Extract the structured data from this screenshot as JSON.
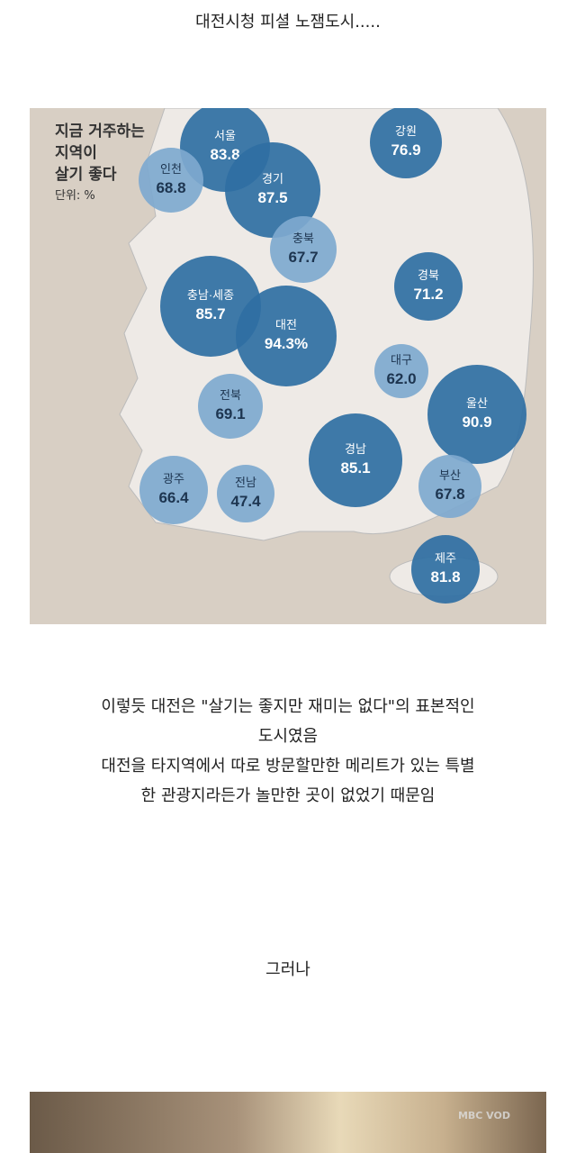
{
  "post": {
    "title": "대전시청 피셜 노잼도시.....",
    "paragraph_lines": [
      "이렇듯 대전은 \"살기는 좋지만 재미는 없다\"의 표본적인",
      "도시였음",
      "대전을 타지역에서 따로 방문할만한 메리트가 있는 특별",
      "한 관광지라든가 놀만한 곳이 없었기 때문임"
    ],
    "however": "그러나"
  },
  "map": {
    "title_lines": [
      "지금 거주하는",
      "지역이",
      "살기 좋다"
    ],
    "unit": "단위: %",
    "colors": {
      "dark": "#2f6fa3",
      "light": "#7ea9cf",
      "land": "#eeeae6",
      "sea": "#d8cfc4"
    },
    "regions": [
      {
        "name": "서울",
        "value": "83.8",
        "tone": "dark"
      },
      {
        "name": "경기",
        "value": "87.5",
        "tone": "dark"
      },
      {
        "name": "인천",
        "value": "68.8",
        "tone": "light"
      },
      {
        "name": "강원",
        "value": "76.9",
        "tone": "dark"
      },
      {
        "name": "충북",
        "value": "67.7",
        "tone": "light"
      },
      {
        "name": "충남·세종",
        "value": "85.7",
        "tone": "dark"
      },
      {
        "name": "대전",
        "value": "94.3%",
        "tone": "dark"
      },
      {
        "name": "경북",
        "value": "71.2",
        "tone": "dark"
      },
      {
        "name": "대구",
        "value": "62.0",
        "tone": "light"
      },
      {
        "name": "울산",
        "value": "90.9",
        "tone": "dark"
      },
      {
        "name": "전북",
        "value": "69.1",
        "tone": "light"
      },
      {
        "name": "경남",
        "value": "85.1",
        "tone": "dark"
      },
      {
        "name": "광주",
        "value": "66.4",
        "tone": "light"
      },
      {
        "name": "전남",
        "value": "47.4",
        "tone": "light"
      },
      {
        "name": "부산",
        "value": "67.8",
        "tone": "light"
      },
      {
        "name": "제주",
        "value": "81.8",
        "tone": "dark"
      }
    ]
  },
  "photo": {
    "watermark": "MBC VOD"
  }
}
